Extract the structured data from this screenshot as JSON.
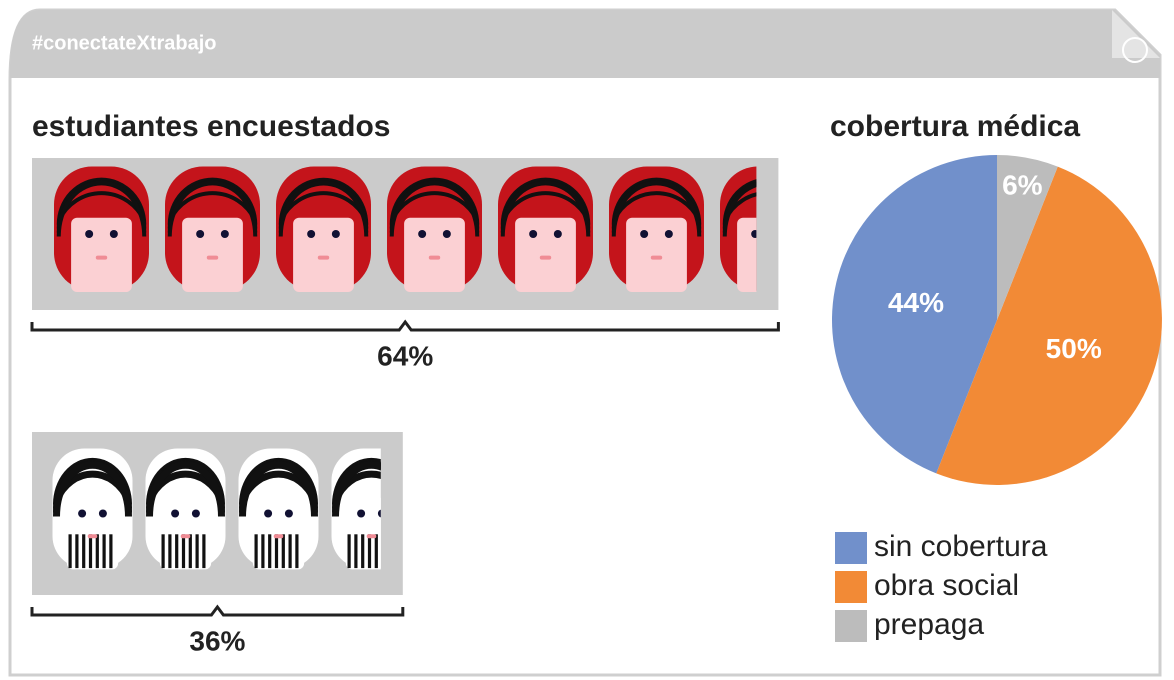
{
  "header": {
    "tag": "#conectateXtrabajo"
  },
  "chart_data": [
    {
      "type": "pictogram",
      "title": "estudiantes encuestados",
      "values": [
        64,
        36
      ],
      "value_labels": [
        "64%",
        "36%"
      ]
    },
    {
      "type": "pie",
      "title": "cobertura médica",
      "categories": [
        "sin cobertura",
        "obra social",
        "prepaga"
      ],
      "values": [
        44,
        50,
        6
      ],
      "value_labels": [
        "44%",
        "50%",
        "6%"
      ],
      "colors": [
        "#7190cb",
        "#f28a36",
        "#bcbcbc"
      ],
      "legend": "bottom"
    }
  ]
}
